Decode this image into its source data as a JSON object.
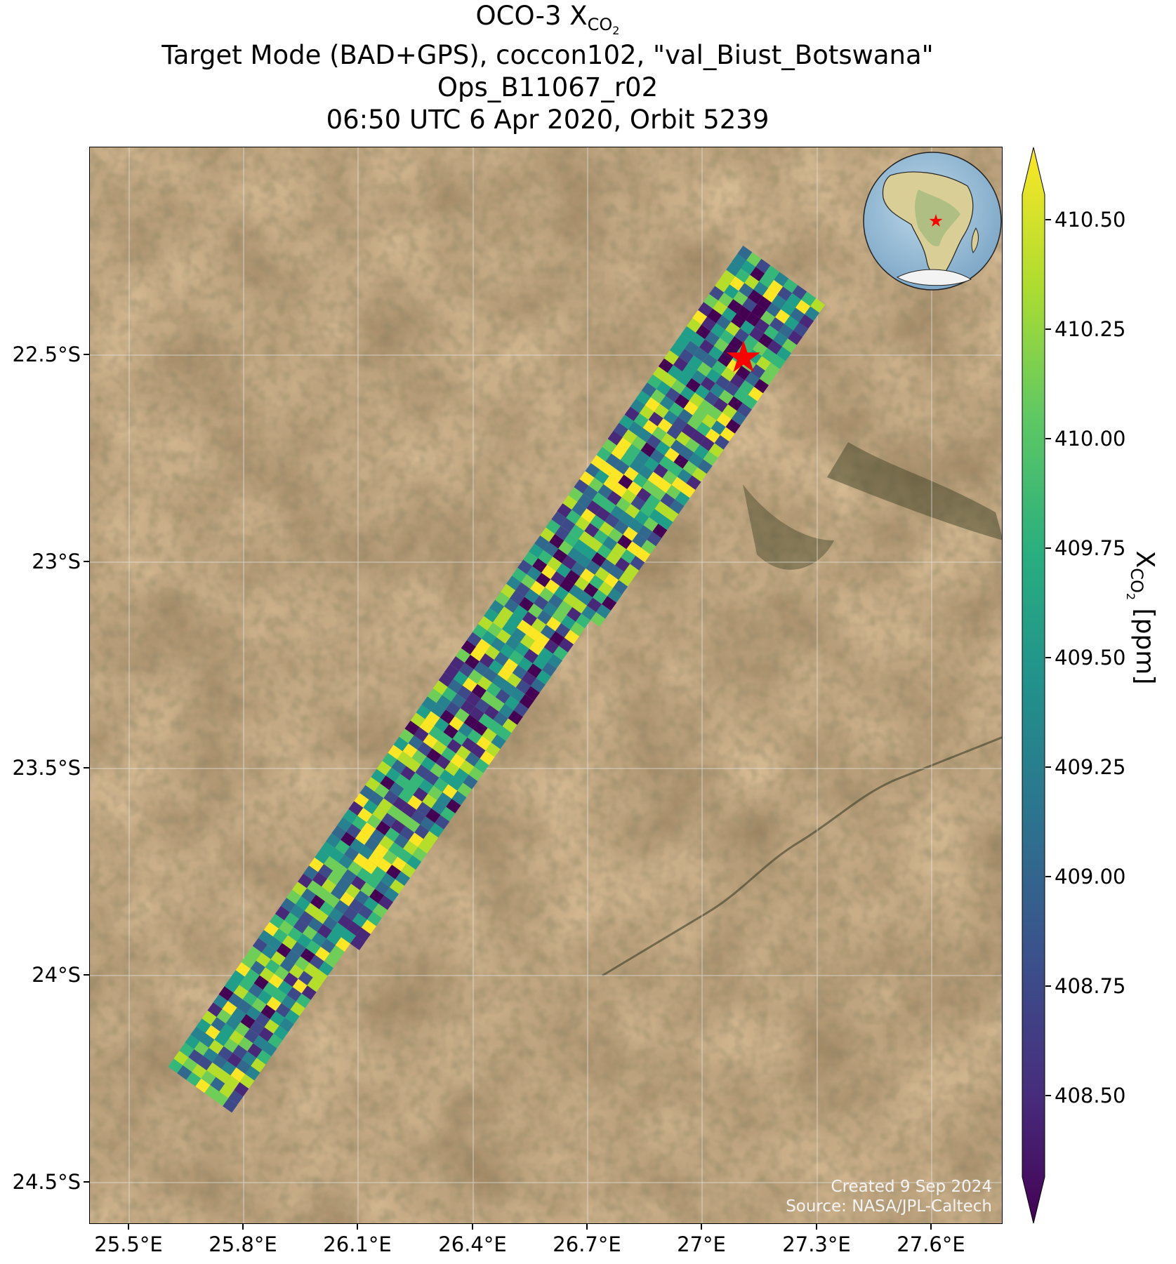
{
  "header": {
    "title_main": "OCO-3 X",
    "title_sub": "CO",
    "title_sub_sub": "2",
    "line2": "Target Mode (BAD+GPS), coccon102, \"val_Biust_Botswana\"",
    "line3": "Ops_B11067_r02",
    "line4": "06:50 UTC 6 Apr 2020, Orbit 5239"
  },
  "map": {
    "lon_ticks": [
      "25.5°E",
      "25.8°E",
      "26.1°E",
      "26.4°E",
      "26.7°E",
      "27°E",
      "27.3°E",
      "27.6°E"
    ],
    "lat_ticks": [
      "22.5°S",
      "23°S",
      "23.5°S",
      "24°S",
      "24.5°S"
    ],
    "target_marker": "red-star",
    "background": "satellite-imagery",
    "inset": "globe-africa-with-red-star",
    "credit_line1": "Created 9 Sep 2024",
    "credit_line2": "Source: NASA/JPL-Caltech"
  },
  "colorbar": {
    "colormap": "viridis",
    "ticks": [
      "410.50",
      "410.25",
      "410.00",
      "409.75",
      "409.50",
      "409.25",
      "409.00",
      "408.75",
      "408.50"
    ],
    "label_main": "X",
    "label_sub": "CO",
    "label_sub_sub": "2",
    "label_unit": " [ppm]",
    "extend": "both"
  },
  "colors": {
    "viridis_low": "#440154",
    "viridis_mid": "#21918c",
    "viridis_high": "#fde725",
    "target_star": "#ff0000"
  }
}
